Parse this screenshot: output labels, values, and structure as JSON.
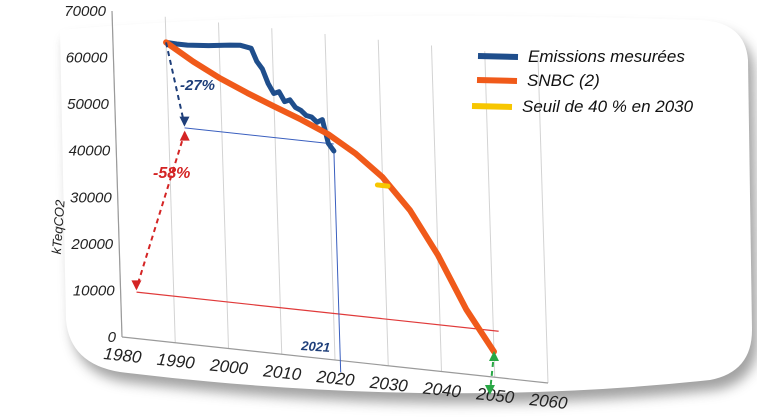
{
  "chart_data": {
    "type": "line",
    "ylabel": "kTeqCO2",
    "xlim": [
      1980,
      2060
    ],
    "ylim": [
      0,
      70000
    ],
    "x_ticks": [
      "1980",
      "1990",
      "2000",
      "2010",
      "2020",
      "2030",
      "2040",
      "2050",
      "2060"
    ],
    "y_ticks": [
      "0",
      "10000",
      "20000",
      "30000",
      "40000",
      "50000",
      "60000",
      "70000"
    ],
    "grid": "vertical",
    "legend_position": "top-right",
    "series": [
      {
        "name": "Emissions mesurées",
        "color": "#1f4e8c",
        "points": [
          [
            1990,
            64500
          ],
          [
            1992,
            64400
          ],
          [
            1994,
            64400
          ],
          [
            1996,
            64600
          ],
          [
            1998,
            64800
          ],
          [
            2000,
            65100
          ],
          [
            2002,
            65400
          ],
          [
            2004,
            65600
          ],
          [
            2006,
            65200
          ],
          [
            2007,
            62500
          ],
          [
            2008,
            61000
          ],
          [
            2009,
            58000
          ],
          [
            2010,
            56000
          ],
          [
            2011,
            56500
          ],
          [
            2012,
            54500
          ],
          [
            2013,
            55000
          ],
          [
            2014,
            53500
          ],
          [
            2015,
            53000
          ],
          [
            2016,
            52000
          ],
          [
            2017,
            51800
          ],
          [
            2018,
            50800
          ],
          [
            2019,
            51500
          ],
          [
            2020,
            46500
          ],
          [
            2021,
            45000
          ]
        ]
      },
      {
        "name": "SNBC (2)",
        "color": "#f05a1a",
        "points": [
          [
            1990,
            64500
          ],
          [
            1995,
            61000
          ],
          [
            2000,
            58000
          ],
          [
            2005,
            55500
          ],
          [
            2010,
            53200
          ],
          [
            2015,
            51000
          ],
          [
            2020,
            48500
          ],
          [
            2025,
            45000
          ],
          [
            2030,
            40500
          ],
          [
            2035,
            34000
          ],
          [
            2040,
            25000
          ],
          [
            2045,
            14000
          ],
          [
            2050,
            5500
          ]
        ]
      },
      {
        "name": "Seuil de 40 % en 2030",
        "color": "#f7c600",
        "points": [
          [
            2029,
            38700
          ],
          [
            2031,
            38700
          ]
        ]
      }
    ],
    "annotations": [
      {
        "text": "-27%",
        "color": "#1f3f7a"
      },
      {
        "text": "-58%",
        "color": "#d42424"
      },
      {
        "text": "2021",
        "color": "#1f3f7a"
      }
    ],
    "reference_lines": [
      {
        "axis": "y",
        "value": 46500,
        "color": "#3a5fbf"
      },
      {
        "axis": "y",
        "value": 10000,
        "color": "#e03a3a"
      },
      {
        "axis": "x",
        "value": 2021,
        "color": "#3a5fbf"
      }
    ]
  }
}
